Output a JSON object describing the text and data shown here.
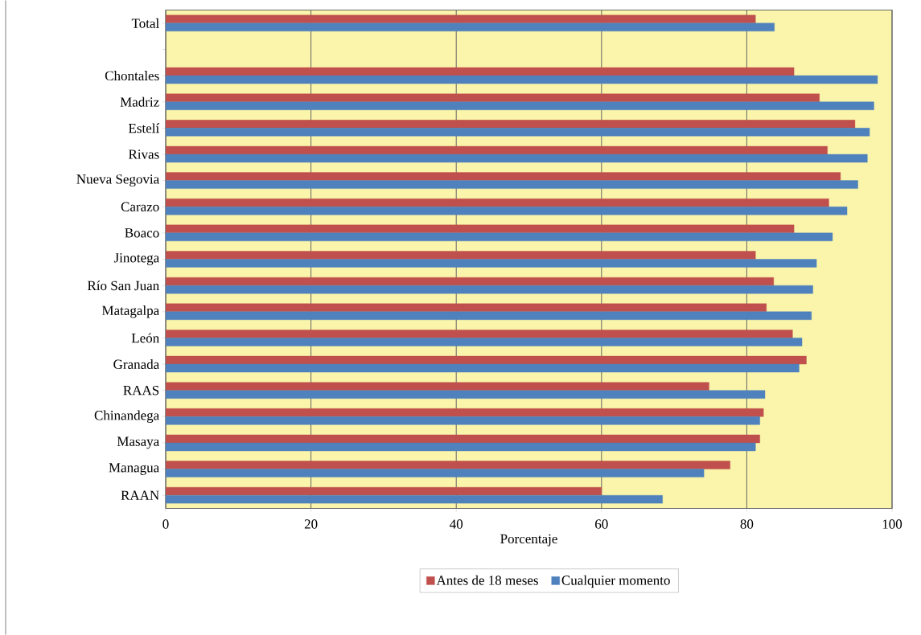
{
  "chart_data": {
    "type": "bar",
    "orientation": "horizontal",
    "xlabel": "Porcentaje",
    "categories": [
      "Total",
      null,
      "Chontales",
      "Madriz",
      "Estelí",
      "Rivas",
      "Nueva Segovia",
      "Carazo",
      "Boaco",
      "Jinotega",
      "Río San Juan",
      "Matagalpa",
      "León",
      "Granada",
      "RAAS",
      "Chinandega",
      "Masaya",
      "Managua",
      "RAAN"
    ],
    "series": [
      {
        "name": "Antes de 18 meses",
        "color": "#c0504d",
        "values": [
          81.2,
          null,
          86.5,
          90.0,
          94.9,
          91.1,
          92.9,
          91.3,
          86.5,
          81.2,
          83.7,
          82.7,
          86.3,
          88.2,
          74.8,
          82.3,
          81.8,
          77.7,
          60.0
        ]
      },
      {
        "name": "Cualquier momento",
        "color": "#4f81bd",
        "values": [
          83.8,
          null,
          98.0,
          97.5,
          96.9,
          96.6,
          95.3,
          93.8,
          91.8,
          89.6,
          89.1,
          88.9,
          87.6,
          87.2,
          82.5,
          81.8,
          81.2,
          74.1,
          68.4
        ]
      }
    ],
    "xlim": [
      0,
      100
    ],
    "xticks": [
      0,
      20,
      40,
      60,
      80,
      100
    ],
    "grid": "x",
    "legend": "bottom"
  }
}
